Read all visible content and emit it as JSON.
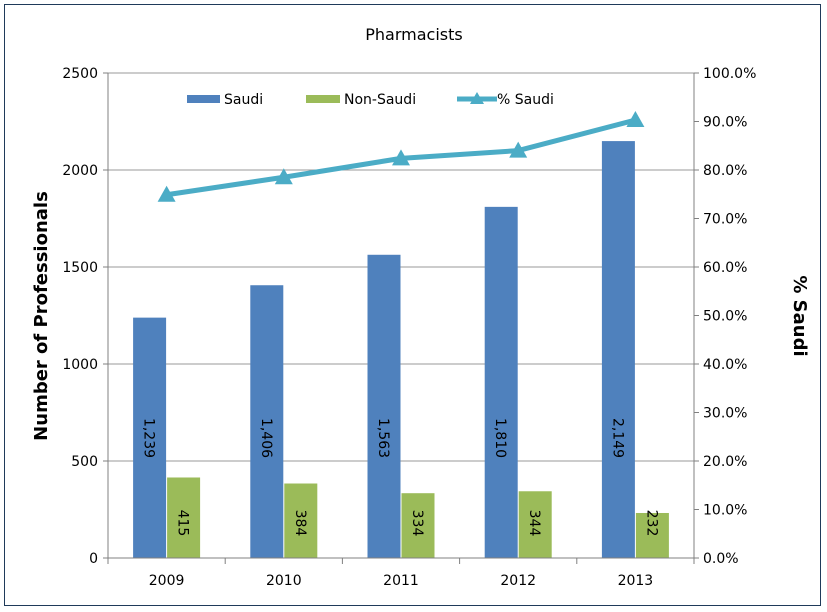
{
  "chart_data": {
    "type": "bar",
    "title": "Pharmacists",
    "categories": [
      "2009",
      "2010",
      "2011",
      "2012",
      "2013"
    ],
    "ylabel": "Number of Professionals",
    "y2label": "% Saudi",
    "ylim": [
      0,
      2500
    ],
    "y2lim": [
      0,
      100
    ],
    "yticks": [
      "0",
      "500",
      "1000",
      "1500",
      "2000",
      "2500"
    ],
    "y2ticks": [
      "0.0%",
      "10.0%",
      "20.0%",
      "30.0%",
      "40.0%",
      "50.0%",
      "60.0%",
      "70.0%",
      "80.0%",
      "90.0%",
      "100.0%"
    ],
    "grid": true,
    "legend": "top",
    "series": [
      {
        "name": "Saudi",
        "type": "bar",
        "axis": "left",
        "color": "#4f81bd",
        "values": [
          1239,
          1406,
          1563,
          1810,
          2149
        ],
        "labels": [
          "1,239",
          "1,406",
          "1,563",
          "1,810",
          "2,149"
        ]
      },
      {
        "name": "Non-Saudi",
        "type": "bar",
        "axis": "left",
        "color": "#9bbb59",
        "values": [
          415,
          384,
          334,
          344,
          232
        ],
        "labels": [
          "415",
          "384",
          "334",
          "344",
          "232"
        ]
      },
      {
        "name": "% Saudi",
        "type": "line",
        "axis": "right",
        "color": "#4bacc6",
        "values": [
          74.9,
          78.5,
          82.4,
          84.0,
          90.3
        ]
      }
    ]
  }
}
